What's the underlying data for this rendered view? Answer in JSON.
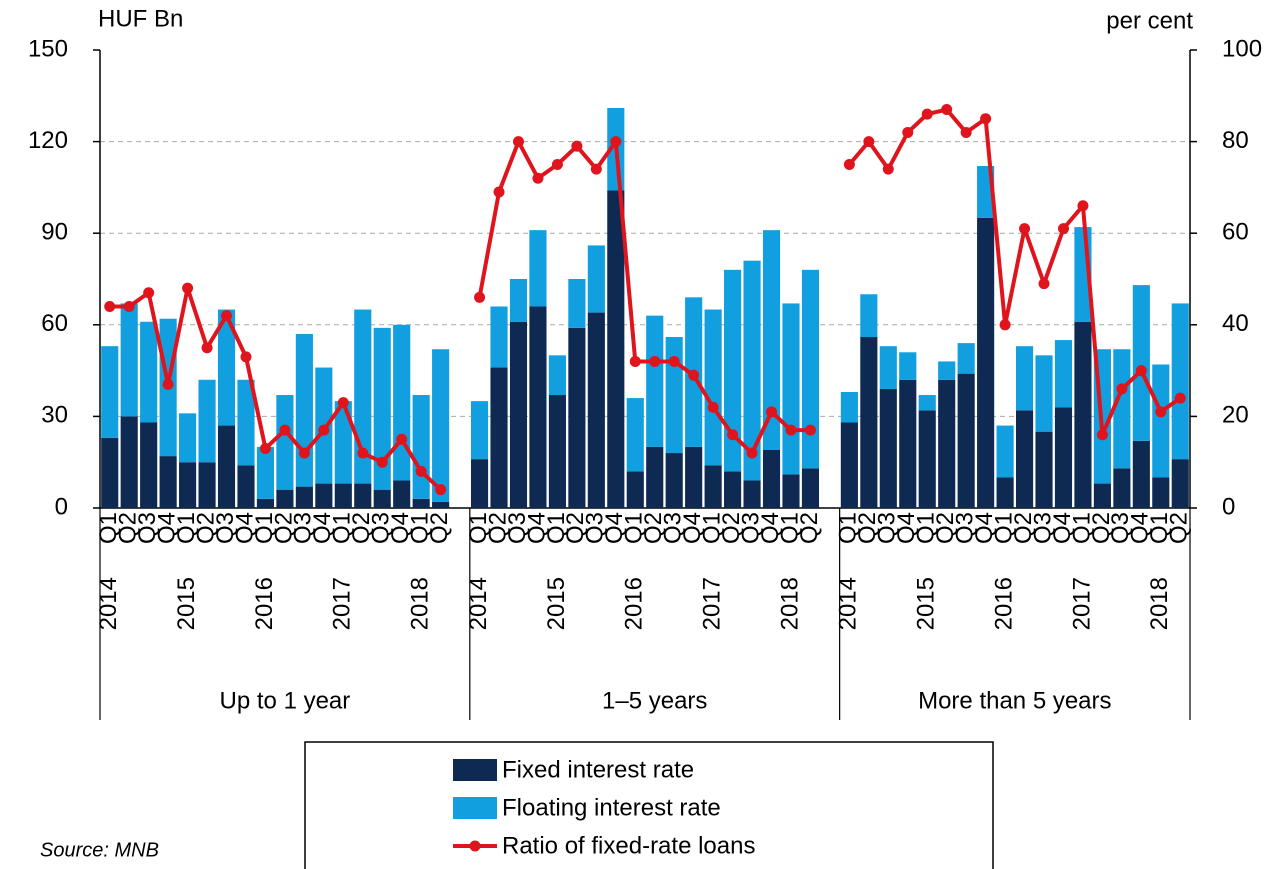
{
  "chart_data": {
    "type": "bar",
    "stacked": true,
    "y_label": "HUF Bn",
    "y2_label": "per cent",
    "ylim": [
      0,
      150
    ],
    "yticks": [
      0,
      30,
      60,
      90,
      120,
      150
    ],
    "y2lim": [
      0,
      100
    ],
    "y2ticks": [
      0,
      20,
      40,
      60,
      80,
      100
    ],
    "grid": true,
    "legend": "bottom",
    "groups": [
      {
        "name": "Up to 1 year",
        "categories": [
          "Q1",
          "Q2",
          "Q3",
          "Q4",
          "Q1",
          "Q2",
          "Q3",
          "Q4",
          "Q1",
          "Q2",
          "Q3",
          "Q4",
          "Q1",
          "Q2",
          "Q3",
          "Q4",
          "Q1",
          "Q2"
        ],
        "years": [
          "2014",
          null,
          null,
          null,
          "2015",
          null,
          null,
          null,
          "2016",
          null,
          null,
          null,
          "2017",
          null,
          null,
          null,
          "2018",
          null
        ]
      },
      {
        "name": "1–5 years",
        "categories": [
          "Q1",
          "Q2",
          "Q3",
          "Q4",
          "Q1",
          "Q2",
          "Q3",
          "Q4",
          "Q1",
          "Q2",
          "Q3",
          "Q4",
          "Q1",
          "Q2",
          "Q3",
          "Q4",
          "Q1",
          "Q2"
        ],
        "years": [
          "2014",
          null,
          null,
          null,
          "2015",
          null,
          null,
          null,
          "2016",
          null,
          null,
          null,
          "2017",
          null,
          null,
          null,
          "2018",
          null
        ]
      },
      {
        "name": "More than 5 years",
        "categories": [
          "Q1",
          "Q2",
          "Q3",
          "Q4",
          "Q1",
          "Q2",
          "Q3",
          "Q4",
          "Q1",
          "Q2",
          "Q3",
          "Q4",
          "Q1",
          "Q2",
          "Q3",
          "Q4",
          "Q1",
          "Q2"
        ],
        "years": [
          "2014",
          null,
          null,
          null,
          "2015",
          null,
          null,
          null,
          "2016",
          null,
          null,
          null,
          "2017",
          null,
          null,
          null,
          "2018",
          null
        ]
      }
    ],
    "series": [
      {
        "name": "Fixed interest rate",
        "color": "#0f2a52",
        "values": [
          23,
          30,
          28,
          17,
          15,
          15,
          27,
          14,
          3,
          6,
          7,
          8,
          8,
          8,
          6,
          9,
          3,
          2,
          16,
          46,
          61,
          66,
          37,
          59,
          64,
          104,
          12,
          20,
          18,
          20,
          14,
          12,
          9,
          19,
          11,
          13,
          28,
          56,
          39,
          42,
          32,
          42,
          44,
          95,
          10,
          32,
          25,
          33,
          61,
          8,
          13,
          22,
          10,
          16
        ]
      },
      {
        "name": "Floating interest rate",
        "color": "#119fdf",
        "values": [
          30,
          37,
          33,
          45,
          16,
          27,
          38,
          28,
          17,
          31,
          50,
          38,
          27,
          57,
          53,
          51,
          34,
          50,
          19,
          20,
          14,
          25,
          13,
          16,
          22,
          27,
          24,
          43,
          38,
          49,
          51,
          66,
          72,
          72,
          56,
          65,
          10,
          14,
          14,
          9,
          5,
          6,
          10,
          17,
          17,
          21,
          25,
          22,
          31,
          44,
          39,
          51,
          37,
          51
        ]
      },
      {
        "name": "Ratio of fixed-rate loans",
        "color": "#e0141c",
        "type": "line",
        "axis": "y2",
        "values": [
          44,
          44,
          47,
          27,
          48,
          35,
          42,
          33,
          13,
          17,
          12,
          17,
          23,
          12,
          10,
          15,
          8,
          4,
          46,
          69,
          80,
          72,
          75,
          79,
          74,
          80,
          32,
          32,
          32,
          29,
          22,
          16,
          12,
          21,
          17,
          17,
          75,
          80,
          74,
          82,
          86,
          87,
          82,
          85,
          40,
          61,
          49,
          61,
          66,
          16,
          26,
          30,
          21,
          24
        ]
      }
    ]
  },
  "source": "Source: MNB"
}
